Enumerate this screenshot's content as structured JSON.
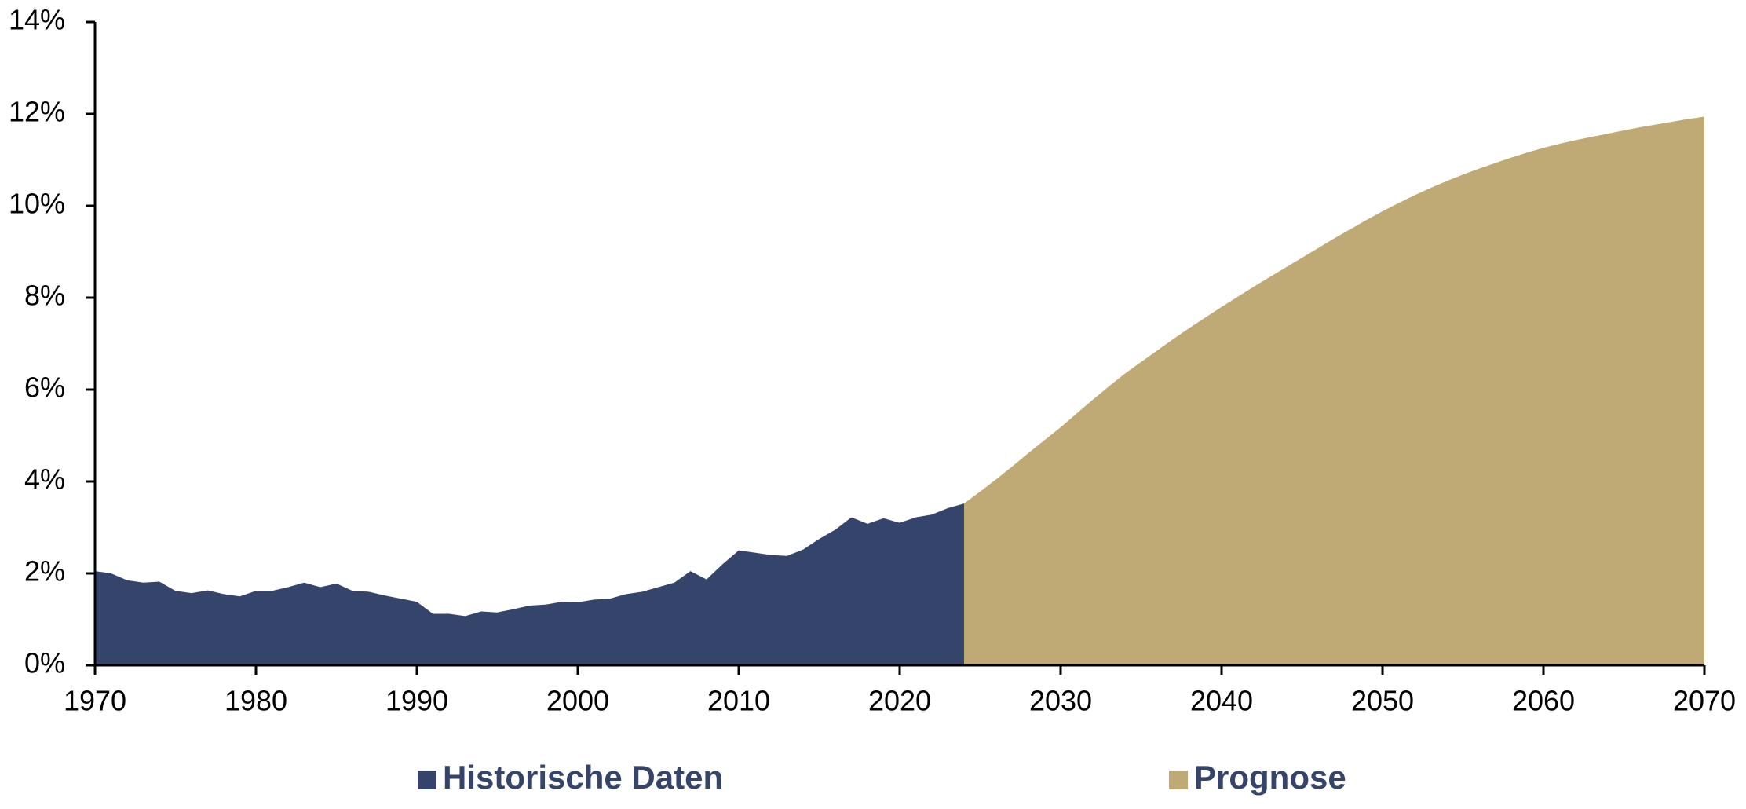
{
  "chart_data": {
    "type": "area",
    "series": [
      {
        "name": "Historische Daten",
        "color": "#34446a",
        "x": [
          1970,
          1971,
          1972,
          1973,
          1974,
          1975,
          1976,
          1977,
          1978,
          1979,
          1980,
          1981,
          1982,
          1983,
          1984,
          1985,
          1986,
          1987,
          1988,
          1989,
          1990,
          1991,
          1992,
          1993,
          1994,
          1995,
          1996,
          1997,
          1998,
          1999,
          2000,
          2001,
          2002,
          2003,
          2004,
          2005,
          2006,
          2007,
          2008,
          2009,
          2010,
          2011,
          2012,
          2013,
          2014,
          2015,
          2016,
          2017,
          2018,
          2019,
          2020,
          2021,
          2022,
          2023,
          2024
        ],
        "values": [
          2.05,
          2.0,
          1.85,
          1.8,
          1.82,
          1.62,
          1.57,
          1.63,
          1.55,
          1.5,
          1.62,
          1.62,
          1.7,
          1.8,
          1.7,
          1.78,
          1.62,
          1.6,
          1.52,
          1.45,
          1.38,
          1.12,
          1.12,
          1.07,
          1.17,
          1.15,
          1.22,
          1.3,
          1.32,
          1.38,
          1.37,
          1.43,
          1.45,
          1.55,
          1.6,
          1.7,
          1.8,
          2.05,
          1.87,
          2.2,
          2.5,
          2.45,
          2.4,
          2.38,
          2.52,
          2.75,
          2.95,
          3.22,
          3.08,
          3.2,
          3.1,
          3.22,
          3.28,
          3.42,
          3.52
        ]
      },
      {
        "name": "Prognose",
        "color": "#bfaa76",
        "x": [
          2024,
          2025,
          2026,
          2027,
          2028,
          2029,
          2030,
          2031,
          2032,
          2033,
          2034,
          2035,
          2036,
          2037,
          2038,
          2039,
          2040,
          2041,
          2042,
          2043,
          2044,
          2045,
          2046,
          2047,
          2048,
          2049,
          2050,
          2051,
          2052,
          2053,
          2054,
          2055,
          2056,
          2057,
          2058,
          2059,
          2060,
          2061,
          2062,
          2063,
          2064,
          2065,
          2066,
          2067,
          2068,
          2069,
          2070
        ],
        "values": [
          3.52,
          3.78,
          4.05,
          4.33,
          4.62,
          4.9,
          5.18,
          5.48,
          5.78,
          6.07,
          6.35,
          6.6,
          6.85,
          7.1,
          7.34,
          7.57,
          7.8,
          8.02,
          8.24,
          8.45,
          8.66,
          8.87,
          9.08,
          9.29,
          9.49,
          9.69,
          9.88,
          10.06,
          10.23,
          10.39,
          10.54,
          10.68,
          10.81,
          10.93,
          11.05,
          11.16,
          11.26,
          11.35,
          11.43,
          11.5,
          11.57,
          11.64,
          11.71,
          11.77,
          11.83,
          11.89,
          11.94
        ]
      }
    ],
    "xlim": [
      1970,
      2070
    ],
    "xticks": [
      1970,
      1980,
      1990,
      2000,
      2010,
      2020,
      2030,
      2040,
      2050,
      2060,
      2070
    ],
    "ylim": [
      0,
      14
    ],
    "yticks": [
      {
        "value": 0,
        "label": "0%"
      },
      {
        "value": 2,
        "label": "2%"
      },
      {
        "value": 4,
        "label": "4%"
      },
      {
        "value": 6,
        "label": "6%"
      },
      {
        "value": 8,
        "label": "8%"
      },
      {
        "value": 10,
        "label": "10%"
      },
      {
        "value": 12,
        "label": "12%"
      },
      {
        "value": 14,
        "label": "14%"
      }
    ],
    "grid": false,
    "legend": "bottom"
  }
}
